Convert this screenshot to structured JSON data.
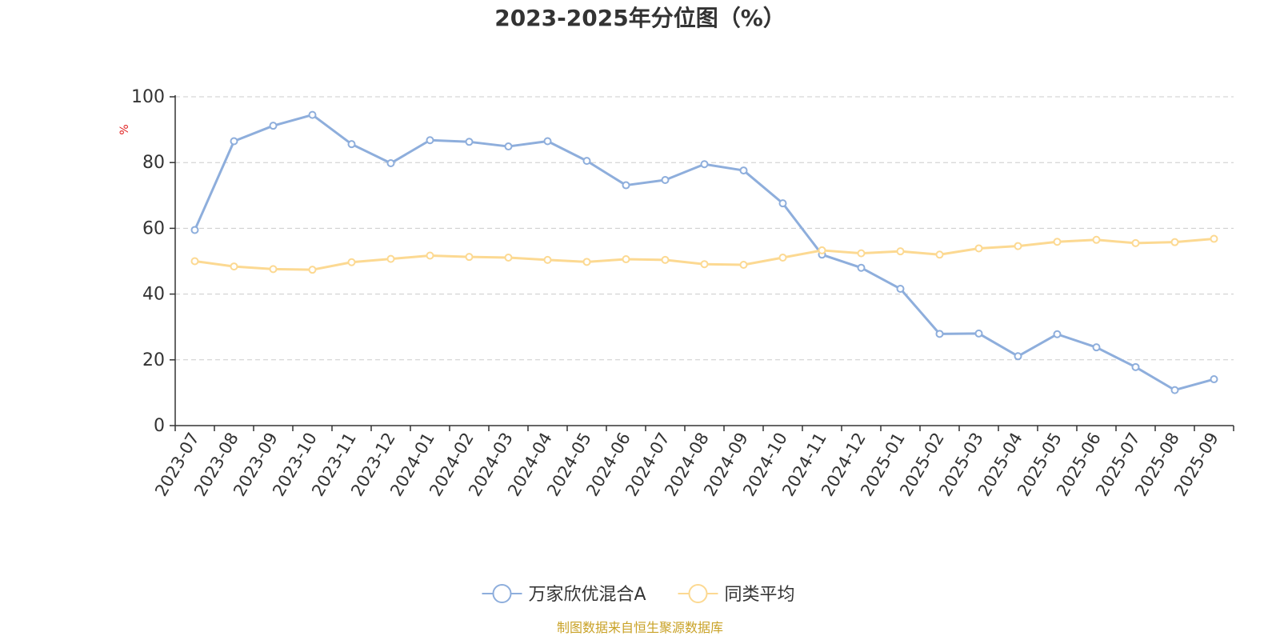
{
  "chart_data": {
    "type": "line",
    "title": "2023-2025年分位图（%）",
    "ylabel": "%",
    "xlabel": "",
    "ylim": [
      0,
      100
    ],
    "yticks": [
      0,
      20,
      40,
      60,
      80,
      100
    ],
    "grid": true,
    "legend_placement": "bottom",
    "categories": [
      "2023-07",
      "2023-08",
      "2023-09",
      "2023-10",
      "2023-11",
      "2023-12",
      "2024-01",
      "2024-02",
      "2024-03",
      "2024-04",
      "2024-05",
      "2024-06",
      "2024-07",
      "2024-08",
      "2024-09",
      "2024-10",
      "2024-11",
      "2024-12",
      "2025-01",
      "2025-02",
      "2025-03",
      "2025-04",
      "2025-05",
      "2025-06",
      "2025-07",
      "2025-08",
      "2025-09"
    ],
    "series": [
      {
        "name": "万家欣优混合A",
        "color": "#8eaedc",
        "values": [
          59.5,
          86.5,
          91.2,
          94.5,
          85.6,
          79.8,
          86.8,
          86.3,
          84.9,
          86.5,
          80.5,
          73.1,
          74.7,
          79.5,
          77.6,
          67.6,
          52.0,
          48.0,
          41.6,
          27.9,
          28.0,
          21.1,
          27.8,
          23.8,
          17.8,
          10.8,
          14.1
        ]
      },
      {
        "name": "同类平均",
        "color": "#fcd992",
        "values": [
          50.0,
          48.4,
          47.6,
          47.4,
          49.7,
          50.7,
          51.7,
          51.3,
          51.1,
          50.4,
          49.8,
          50.6,
          50.4,
          49.1,
          48.9,
          51.1,
          53.3,
          52.4,
          53.0,
          52.0,
          53.9,
          54.6,
          55.9,
          56.5,
          55.5,
          55.8,
          56.8
        ]
      }
    ]
  },
  "colors": {
    "axis": "#333333",
    "grid": "#cccccc",
    "unit_label": "#e02020",
    "source_note": "#c9a227"
  },
  "footer": {
    "source": "制图数据来自恒生聚源数据库"
  }
}
